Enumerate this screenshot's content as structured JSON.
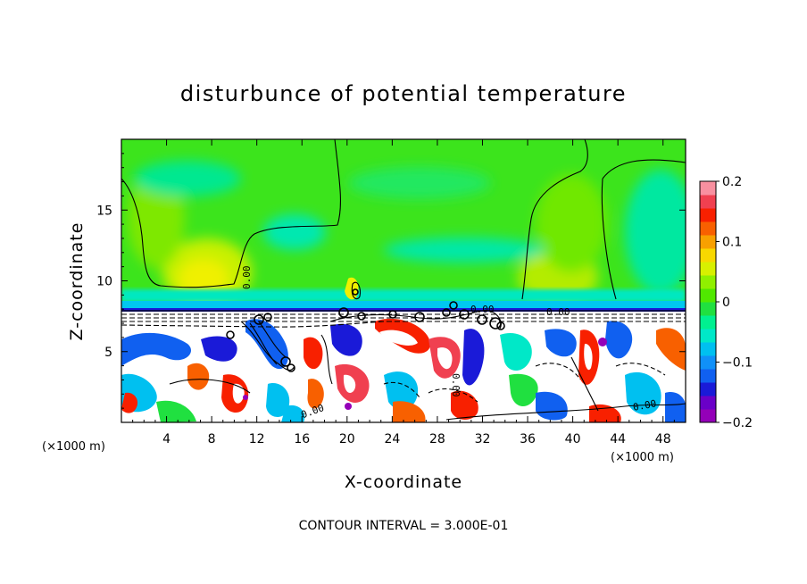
{
  "chart_data": {
    "type": "heatmap",
    "title": "disturbunce of potential temperature",
    "xlabel": "X-coordinate",
    "ylabel": "Z-coordinate",
    "x_unit": "(×1000 m)",
    "xlim": [
      0,
      50
    ],
    "ylim": [
      0,
      20
    ],
    "x_ticks": [
      4,
      8,
      12,
      16,
      20,
      24,
      28,
      32,
      36,
      40,
      44,
      48
    ],
    "y_ticks": [
      5,
      10,
      15
    ],
    "colorbar": {
      "range": [
        -0.2,
        0.2
      ],
      "ticks": [
        0.2,
        0.1,
        0,
        -0.1,
        -0.2
      ],
      "tick_labels": [
        "0.2",
        "0.1",
        "0",
        "−0.1",
        "−0.2"
      ],
      "colors": [
        "#9400b8",
        "#6a00c8",
        "#1a1ad8",
        "#1060f0",
        "#1090f8",
        "#00c0f0",
        "#00e8c8",
        "#00f090",
        "#20e040",
        "#50e800",
        "#90f000",
        "#d8f000",
        "#f8d800",
        "#f8a000",
        "#f86000",
        "#f82000",
        "#f04050",
        "#f890a0"
      ]
    },
    "contour_labels": [
      "0.00",
      "0.00",
      "0.00",
      "0.00",
      "0.00",
      "0.00"
    ],
    "contour_interval_text": "CONTOUR INTERVAL = 3.000E-01",
    "regions": [
      {
        "name": "upper-atmosphere",
        "z_range": [
          8,
          20
        ],
        "dominant_value": 0.0
      },
      {
        "name": "warm-plume-left",
        "x_center": 8,
        "z_center": 10.5,
        "value": 0.08
      },
      {
        "name": "warm-plume-right",
        "x_center": 39,
        "z_center": 10.5,
        "value": 0.06
      },
      {
        "name": "inversion-layer",
        "z_range": [
          7.5,
          8.0
        ],
        "value": -0.08
      },
      {
        "name": "turbulent-boundary-layer",
        "z_range": [
          0,
          7
        ],
        "value_range": [
          -0.2,
          0.2
        ]
      }
    ]
  }
}
